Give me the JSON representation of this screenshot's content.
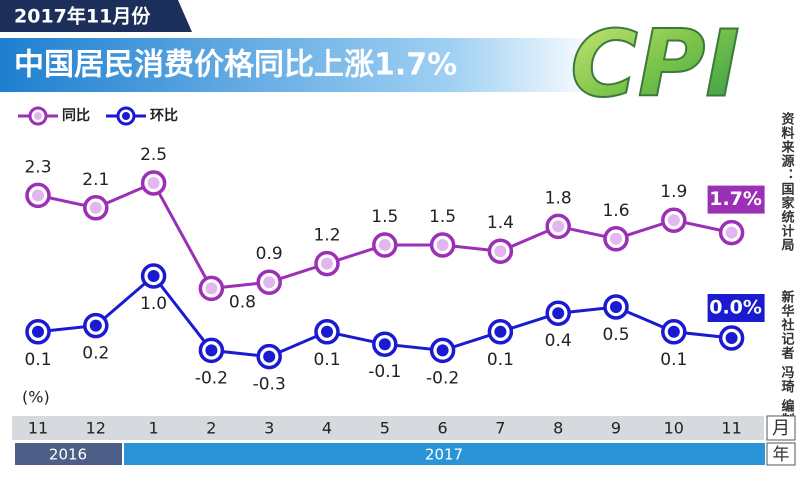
{
  "header": {
    "date": "2017年11月份",
    "title": "中国居民消费价格同比上涨1.7%",
    "logo": "CPI"
  },
  "chart_data": {
    "type": "line",
    "y_label": "(%)",
    "categories": [
      "11",
      "12",
      "1",
      "2",
      "3",
      "4",
      "5",
      "6",
      "7",
      "8",
      "9",
      "10",
      "11"
    ],
    "x_unit": "月",
    "years": [
      "2016",
      "2017"
    ],
    "year_unit": "年",
    "series": [
      {
        "name": "同比",
        "color": "#9b2fb5",
        "values": [
          2.3,
          2.1,
          2.5,
          0.8,
          0.9,
          1.2,
          1.5,
          1.5,
          1.4,
          1.8,
          1.6,
          1.9,
          1.7
        ],
        "value_labels": [
          "2.3",
          "2.1",
          "2.5",
          "0.8",
          "0.9",
          "1.2",
          "1.5",
          "1.5",
          "1.4",
          "1.8",
          "1.6",
          "1.9",
          "1.7%"
        ]
      },
      {
        "name": "环比",
        "color": "#1a1ad0",
        "values": [
          0.1,
          0.2,
          1.0,
          -0.2,
          -0.3,
          0.1,
          -0.1,
          -0.2,
          0.1,
          0.4,
          0.5,
          0.1,
          0.0
        ],
        "value_labels": [
          "0.1",
          "0.2",
          "1.0",
          "-0.2",
          "-0.3",
          "0.1",
          "-0.1",
          "-0.2",
          "0.1",
          "0.4",
          "0.5",
          "0.1",
          "0.0%"
        ]
      }
    ]
  },
  "source": "资料来源：国家统计局",
  "credit": "新华社记者 冯琦 编制"
}
